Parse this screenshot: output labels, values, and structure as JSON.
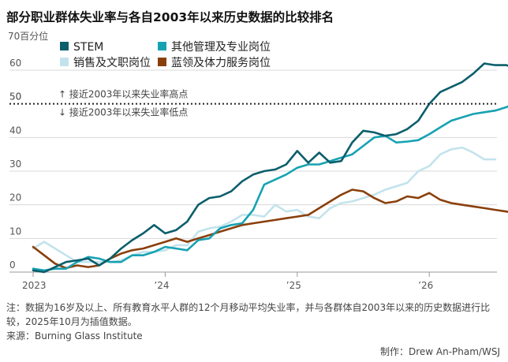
{
  "title": "部分职业群体失业率与各自2003年以来历史数据的比较排名",
  "note": "注：数据为16岁及以上、所有教育水平人群的12个月移动平均失业率，并与各群体自2003年以来的历史数据进行比较，2025年10月为插值数据。",
  "source": "来源：Burning Glass Institute",
  "credit": "制作：Drew An-Pham/WSJ",
  "colors": {
    "stem": "#0b5e6b",
    "management": "#17a2b2",
    "sales": "#c3e3ec",
    "blue_collar": "#8a3f0b",
    "reference_line": "#222222",
    "grid": "#d8d8d8"
  },
  "chart_data": {
    "type": "line",
    "ylabel": "70百分位",
    "ylim": [
      0,
      70
    ],
    "yticks": [
      0,
      10,
      20,
      30,
      40,
      50,
      60
    ],
    "xlim": [
      0,
      35
    ],
    "xticks": [
      {
        "x": 0,
        "label": "2023"
      },
      {
        "x": 12,
        "label": "’24"
      },
      {
        "x": 24,
        "label": "’25"
      },
      {
        "x": 36,
        "label": "’26"
      }
    ],
    "reference_line": {
      "y": 50,
      "label_above": "接近2003年以来失业率高点",
      "label_below": "接近2003年以来失业率低点"
    },
    "grid": true,
    "legend": "top-left",
    "series": [
      {
        "name": "STEM",
        "color_key": "stem",
        "values": [
          0.5,
          0,
          1.5,
          3,
          3.5,
          4,
          2,
          4,
          7,
          9.5,
          11.5,
          14,
          11.5,
          12.5,
          15,
          20,
          22,
          22.5,
          24,
          27,
          29,
          30,
          30.5,
          32,
          36,
          32.5,
          35.5,
          32.5,
          33,
          38.5,
          42,
          41.5,
          40.5,
          41,
          42.5,
          45,
          50,
          53.5,
          55,
          56.5,
          59,
          62,
          61.5,
          61.5,
          60.5,
          59.5
        ]
      },
      {
        "name": "其他管理及专业岗位",
        "color_key": "management",
        "values": [
          1,
          0.5,
          1,
          1,
          3,
          4.5,
          4,
          3,
          3,
          5,
          5,
          6,
          7.5,
          7,
          6.5,
          9.5,
          10,
          13,
          14,
          14.5,
          18.5,
          26,
          27.5,
          29,
          31,
          32,
          32,
          33,
          34,
          35,
          37.5,
          40,
          40.5,
          38.5,
          38.8,
          39.2,
          41,
          43,
          45,
          46,
          47,
          47.5,
          48,
          49,
          50.5,
          49
        ]
      },
      {
        "name": "销售及文职岗位",
        "color_key": "sales",
        "values": [
          7,
          9,
          7,
          5,
          3,
          3,
          3,
          3,
          3.5,
          5,
          6,
          6,
          6.5,
          8,
          8,
          12,
          13,
          13.5,
          15,
          17,
          17,
          16.5,
          20,
          18,
          18.5,
          16.5,
          16,
          19,
          20.5,
          21,
          22,
          23,
          24.5,
          25.5,
          26.5,
          30,
          31.5,
          35,
          36.5,
          37,
          35.5,
          33.5,
          33.5
        ]
      },
      {
        "name": "蓝领及体力服务岗位",
        "color_key": "blue_collar",
        "values": [
          7.5,
          5,
          2.5,
          1.2,
          2,
          1.5,
          2,
          4,
          5.5,
          6.5,
          7,
          8,
          9,
          10,
          9,
          10,
          11,
          12,
          13,
          14,
          14.5,
          15,
          15.5,
          16,
          16.5,
          17,
          19,
          21,
          23,
          24.5,
          24,
          22,
          20.5,
          21,
          22.5,
          22,
          23.5,
          21.5,
          20.5,
          20,
          19.5,
          19,
          18.5,
          18,
          17.5
        ]
      }
    ]
  }
}
